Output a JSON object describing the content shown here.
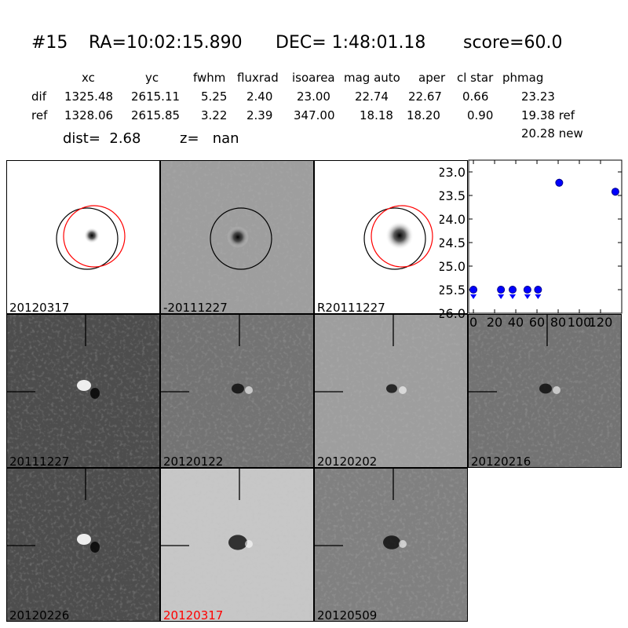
{
  "header": {
    "id": "#15",
    "ra": "RA=10:02:15.890",
    "dec": "DEC= 1:48:01.18",
    "score": "score=60.0"
  },
  "table": {
    "columns": [
      "xc",
      "yc",
      "fwhm",
      "fluxrad",
      "isoarea",
      "mag auto",
      "aper",
      "cl star",
      "phmag"
    ],
    "rows": [
      {
        "label": "dif",
        "values": [
          "1325.48",
          "2615.11",
          "5.25",
          "2.40",
          "23.00",
          "22.74",
          "22.67",
          "0.66",
          "23.23"
        ]
      },
      {
        "label": "ref",
        "values": [
          "1328.06",
          "2615.85",
          "3.22",
          "2.39",
          "347.00",
          "18.18",
          "18.20",
          "0.90",
          "19.38 ref"
        ]
      }
    ],
    "extra": "20.28 new",
    "dist": "dist=  2.68",
    "z": "z=   nan"
  },
  "panels": [
    {
      "label": "20120317",
      "type": "ref-star",
      "circles": true
    },
    {
      "label": "-20111227",
      "type": "diff-dark",
      "circles": true
    },
    {
      "label": "R20111227",
      "type": "ref-star-big",
      "circles": true
    },
    {
      "label": "20111227",
      "type": "bright-dark"
    },
    {
      "label": "20120122",
      "type": "mid"
    },
    {
      "label": "20120202",
      "type": "light"
    },
    {
      "label": "20120216",
      "type": "mid"
    },
    {
      "label": "20120226",
      "type": "bright-dark"
    },
    {
      "label": "20120317",
      "type": "light-dark",
      "highlight": true
    },
    {
      "label": "20120509",
      "type": "mid-dark"
    }
  ],
  "colors": {
    "highlight": "#ff0000",
    "points": "#0000ff",
    "circle_ref": "#ff0000",
    "circle_dif": "#000000"
  },
  "chart_data": {
    "type": "scatter",
    "xlim": [
      -4.5,
      140
    ],
    "ylim": [
      26.0,
      22.75
    ],
    "y_inverted": true,
    "xticks": [
      "0",
      "20",
      "40",
      "60",
      "80",
      "100",
      "120"
    ],
    "yticks": [
      "23.0",
      "23.5",
      "24.0",
      "24.5",
      "25.0",
      "25.5",
      "26.0"
    ],
    "detections": [
      {
        "x": 81,
        "y": 23.23
      },
      {
        "x": 134,
        "y": 23.42
      }
    ],
    "upper_limits": [
      {
        "x": 0,
        "y": 25.5
      },
      {
        "x": 26,
        "y": 25.5
      },
      {
        "x": 37,
        "y": 25.5
      },
      {
        "x": 51,
        "y": 25.5
      },
      {
        "x": 61,
        "y": 25.5
      }
    ]
  }
}
